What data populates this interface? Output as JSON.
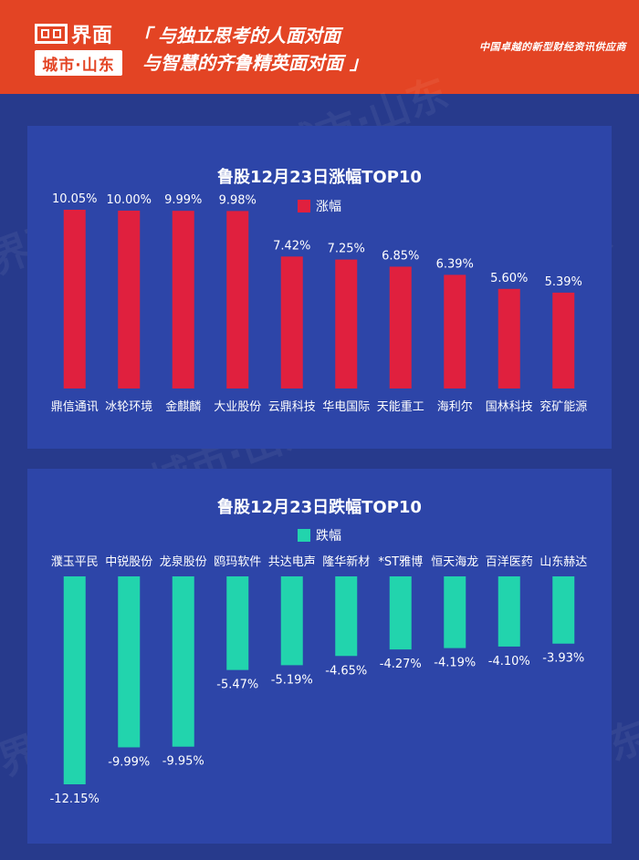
{
  "header": {
    "logo_name": "界面",
    "logo_city": "城市·山东",
    "slogan_line1": "「 与独立思考的人面对面",
    "slogan_line2": "与智慧的齐鲁精英面对面 」",
    "tagline": "中国卓越的新型财经资讯供应商"
  },
  "watermark_text": "界面 城市·山东",
  "colors": {
    "header_bg": "#e34424",
    "page_bg": "#273a8c",
    "panel_bg": "#2d45a8",
    "gain_bar": "#e0203e",
    "loss_bar": "#22d4ad"
  },
  "chart_data": [
    {
      "type": "bar",
      "title": "鲁股12月23日涨幅TOP10",
      "legend": "涨幅",
      "categories": [
        "鼎信通讯",
        "冰轮环境",
        "金麒麟",
        "大业股份",
        "云鼎科技",
        "华电国际",
        "天能重工",
        "海利尔",
        "国林科技",
        "兖矿能源"
      ],
      "values": [
        10.05,
        10.0,
        9.99,
        9.98,
        7.42,
        7.25,
        6.85,
        6.39,
        5.6,
        5.39
      ],
      "labels": [
        "10.05%",
        "10.00%",
        "9.99%",
        "9.98%",
        "7.42%",
        "7.25%",
        "6.85%",
        "6.39%",
        "5.60%",
        "5.39%"
      ],
      "ylim": [
        0,
        10.05
      ]
    },
    {
      "type": "bar",
      "title": "鲁股12月23日跌幅TOP10",
      "legend": "跌幅",
      "categories": [
        "濮玉平民",
        "中锐股份",
        "龙泉股份",
        "鸥玛软件",
        "共达电声",
        "隆华新材",
        "*ST雅博",
        "恒天海龙",
        "百洋医药",
        "山东赫达"
      ],
      "values": [
        -12.15,
        -9.99,
        -9.95,
        -5.47,
        -5.19,
        -4.65,
        -4.27,
        -4.19,
        -4.1,
        -3.93
      ],
      "labels": [
        "-12.15%",
        "-9.99%",
        "-9.95%",
        "-5.47%",
        "-5.19%",
        "-4.65%",
        "-4.27%",
        "-4.19%",
        "-4.10%",
        "-3.93%"
      ],
      "ylim": [
        -12.15,
        0
      ]
    }
  ]
}
